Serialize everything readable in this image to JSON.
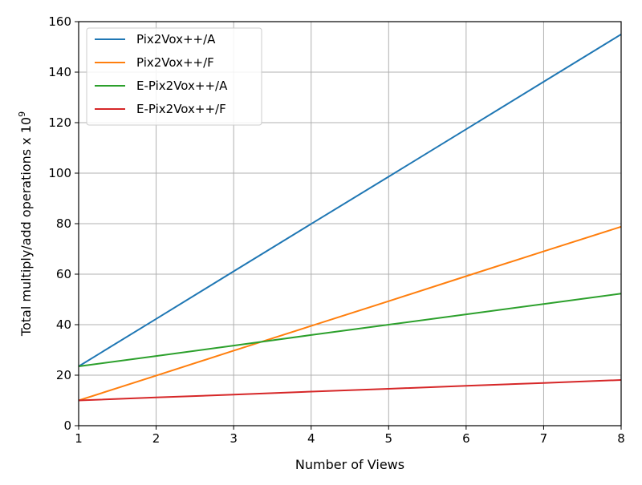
{
  "chart_data": {
    "type": "line",
    "x": [
      1,
      2,
      3,
      4,
      5,
      6,
      7,
      8
    ],
    "xlabel": "Number of Views",
    "ylabel": "Total multiply/add operations x 10",
    "ylabel_exponent": "9",
    "xlim": [
      1,
      8
    ],
    "ylim": [
      0,
      160
    ],
    "xticks": [
      "1",
      "2",
      "3",
      "4",
      "5",
      "6",
      "7",
      "8"
    ],
    "yticks": [
      "0",
      "20",
      "40",
      "60",
      "80",
      "100",
      "120",
      "140",
      "160"
    ],
    "grid": true,
    "legend_position": "top-left",
    "series": [
      {
        "name": "Pix2Vox++/A",
        "color": "#1f77b4",
        "values": [
          23.5,
          42.3,
          61.1,
          79.9,
          98.6,
          117.4,
          136.2,
          155.0
        ]
      },
      {
        "name": "Pix2Vox++/F",
        "color": "#ff7f0e",
        "values": [
          10.0,
          19.8,
          29.7,
          39.5,
          49.3,
          59.2,
          69.0,
          78.8
        ]
      },
      {
        "name": "E-Pix2Vox++/A",
        "color": "#2ca02c",
        "values": [
          23.5,
          27.6,
          31.7,
          35.9,
          40.0,
          44.1,
          48.2,
          52.3
        ]
      },
      {
        "name": "E-Pix2Vox++/F",
        "color": "#d62728",
        "values": [
          10.0,
          11.2,
          12.3,
          13.5,
          14.6,
          15.8,
          16.9,
          18.1
        ]
      }
    ]
  }
}
